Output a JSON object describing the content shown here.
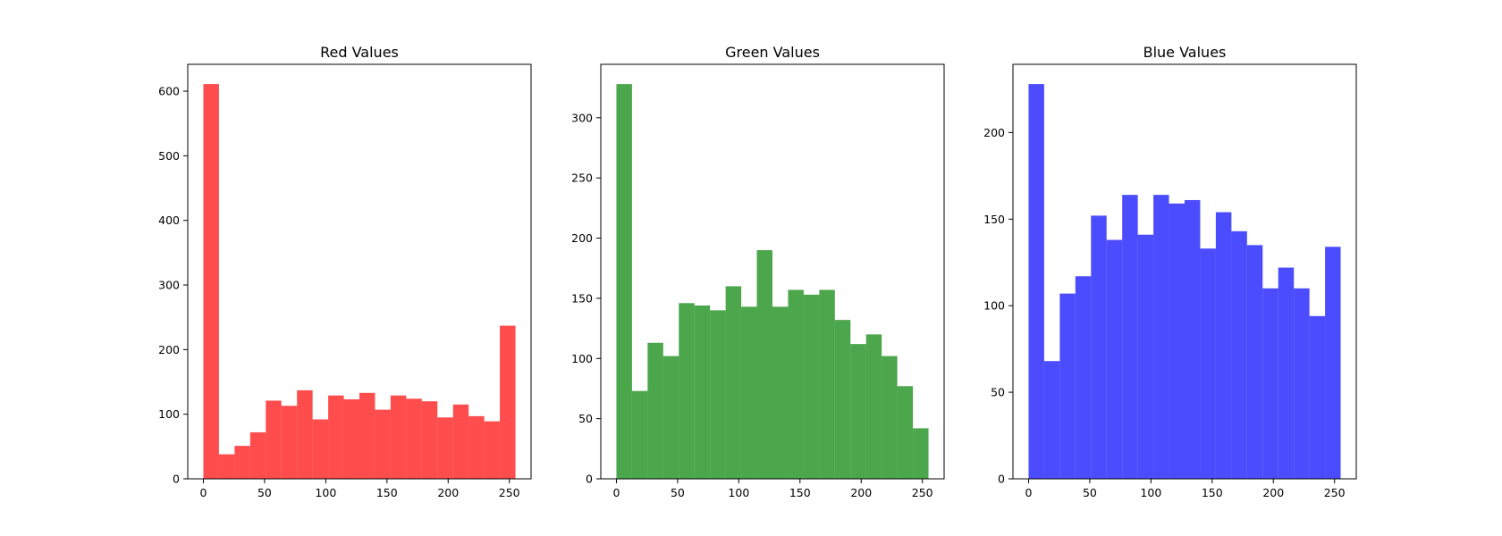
{
  "chart_data": [
    {
      "type": "bar",
      "title": "Red Values",
      "color": "#ff0000",
      "opacity": 0.7,
      "bin_edges": [
        0,
        12.75,
        25.5,
        38.25,
        51,
        63.75,
        76.5,
        89.25,
        102,
        114.75,
        127.5,
        140.25,
        153,
        165.75,
        178.5,
        191.25,
        204,
        216.75,
        229.5,
        242.25,
        255
      ],
      "values": [
        611,
        38,
        51,
        72,
        121,
        113,
        137,
        92,
        129,
        123,
        133,
        107,
        129,
        124,
        120,
        95,
        115,
        97,
        89,
        237
      ],
      "xlim": [
        -12.75,
        267.75
      ],
      "ylim": [
        0,
        641.55
      ],
      "xticks": [
        0,
        50,
        100,
        150,
        200,
        250
      ],
      "yticks": [
        0,
        100,
        200,
        300,
        400,
        500,
        600
      ],
      "xlabel": "",
      "ylabel": "",
      "grid": false
    },
    {
      "type": "bar",
      "title": "Green Values",
      "color": "#008000",
      "opacity": 0.7,
      "bin_edges": [
        0,
        12.75,
        25.5,
        38.25,
        51,
        63.75,
        76.5,
        89.25,
        102,
        114.75,
        127.5,
        140.25,
        153,
        165.75,
        178.5,
        191.25,
        204,
        216.75,
        229.5,
        242.25,
        255
      ],
      "values": [
        328,
        73,
        113,
        102,
        146,
        144,
        140,
        160,
        143,
        190,
        143,
        157,
        153,
        157,
        132,
        112,
        120,
        102,
        77,
        42
      ],
      "xlim": [
        -12.75,
        267.75
      ],
      "ylim": [
        0,
        344.4
      ],
      "xticks": [
        0,
        50,
        100,
        150,
        200,
        250
      ],
      "yticks": [
        0,
        50,
        100,
        150,
        200,
        250,
        300
      ],
      "xlabel": "",
      "ylabel": "",
      "grid": false
    },
    {
      "type": "bar",
      "title": "Blue Values",
      "color": "#0000ff",
      "opacity": 0.7,
      "bin_edges": [
        0,
        12.75,
        25.5,
        38.25,
        51,
        63.75,
        76.5,
        89.25,
        102,
        114.75,
        127.5,
        140.25,
        153,
        165.75,
        178.5,
        191.25,
        204,
        216.75,
        229.5,
        242.25,
        255
      ],
      "values": [
        228,
        68,
        107,
        117,
        152,
        138,
        164,
        141,
        164,
        159,
        161,
        133,
        154,
        143,
        135,
        110,
        122,
        110,
        94,
        134
      ],
      "xlim": [
        -12.75,
        267.75
      ],
      "ylim": [
        0,
        239.4
      ],
      "xticks": [
        0,
        50,
        100,
        150,
        200,
        250
      ],
      "yticks": [
        0,
        50,
        100,
        150,
        200
      ],
      "xlabel": "",
      "ylabel": "",
      "grid": false
    }
  ]
}
